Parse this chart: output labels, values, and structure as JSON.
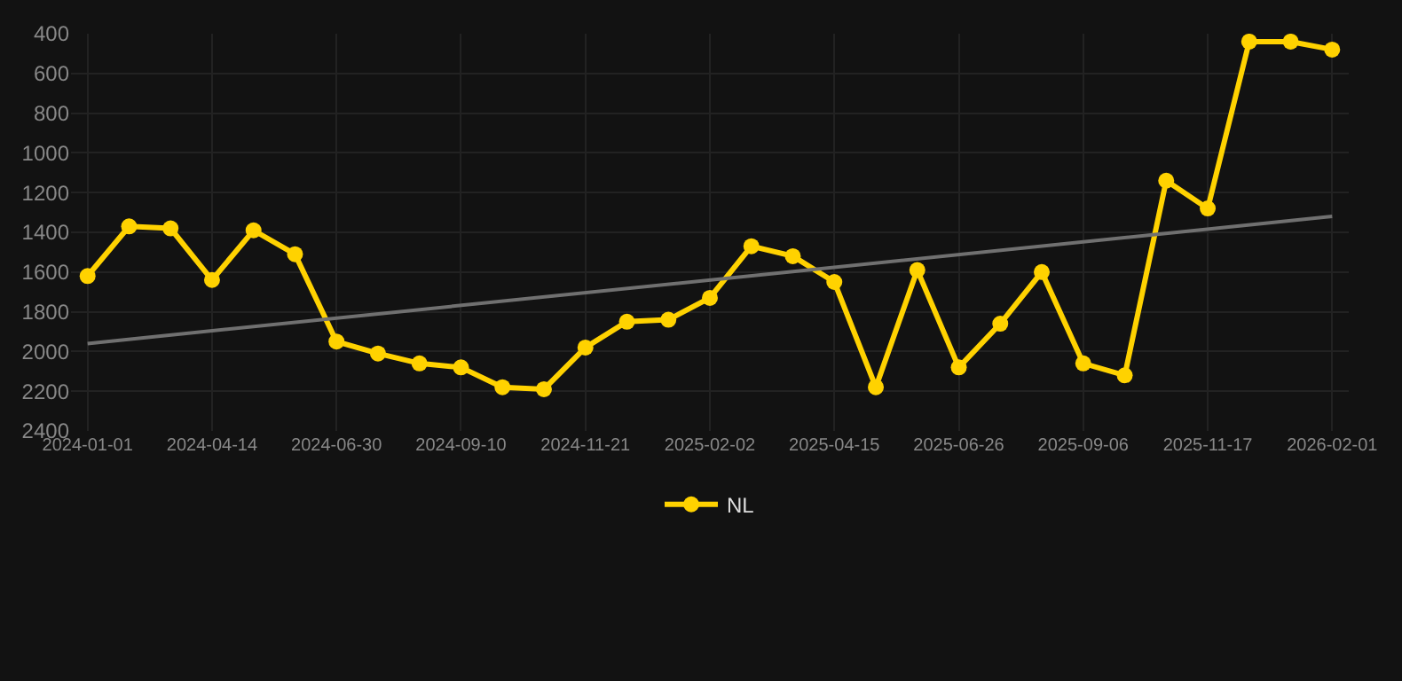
{
  "chart_data": {
    "type": "line",
    "categories": [
      "2024-01-01",
      null,
      null,
      "2024-04-14",
      null,
      null,
      "2024-06-30",
      null,
      null,
      "2024-09-10",
      null,
      null,
      "2024-11-21",
      null,
      null,
      "2025-02-02",
      null,
      null,
      "2025-04-15",
      null,
      null,
      "2025-06-26",
      null,
      null,
      "2025-09-06",
      null,
      null,
      "2025-11-17",
      null,
      null,
      "2026-02-01"
    ],
    "series": [
      {
        "name": "NL",
        "color": "#ffd200",
        "marker": "circle",
        "values": [
          1620,
          1370,
          1380,
          1640,
          1390,
          1510,
          1950,
          2010,
          2060,
          2080,
          2180,
          2190,
          1980,
          1850,
          1840,
          1730,
          1470,
          1520,
          1650,
          2180,
          1590,
          2080,
          1860,
          1600,
          2060,
          2120,
          1140,
          1280,
          440,
          440,
          480
        ]
      },
      {
        "color": "#707070",
        "marker": "none",
        "values": [
          1960,
          null,
          null,
          null,
          null,
          null,
          null,
          null,
          null,
          null,
          null,
          null,
          null,
          null,
          null,
          null,
          null,
          null,
          null,
          null,
          null,
          null,
          null,
          null,
          null,
          null,
          null,
          null,
          null,
          null,
          1320
        ]
      }
    ],
    "ylim": [
      2400,
      400
    ],
    "yticks": [
      400,
      600,
      800,
      1000,
      1200,
      1400,
      1600,
      1800,
      2000,
      2200,
      2400
    ],
    "grid": true,
    "legend": "bottom",
    "line_style": "solid"
  }
}
